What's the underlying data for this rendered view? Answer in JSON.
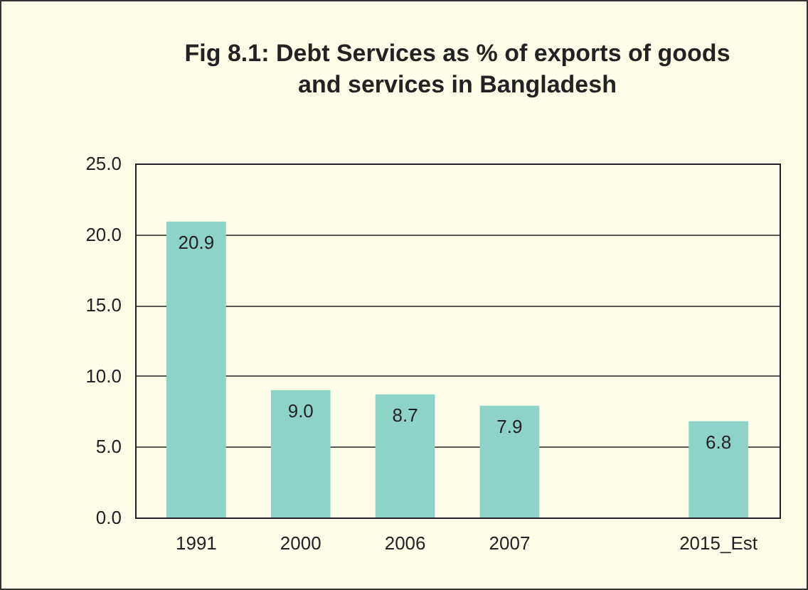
{
  "chart_data": {
    "type": "bar",
    "title": "Fig 8.1: Debt Services as % of exports of goods and services in Bangladesh",
    "categories": [
      "1991",
      "2000",
      "2006",
      "2007",
      null,
      "2015_Est"
    ],
    "values": [
      20.9,
      9.0,
      8.7,
      7.9,
      null,
      6.8
    ],
    "value_labels": [
      "20.9",
      "9.0",
      "8.7",
      "7.9",
      null,
      "6.8"
    ],
    "color": "#8dd3c7",
    "ylim": [
      0,
      25
    ],
    "yticks": [
      {
        "value": 0,
        "label": "0.0"
      },
      {
        "value": 5,
        "label": "5.0"
      },
      {
        "value": 10,
        "label": "10.0"
      },
      {
        "value": 15,
        "label": "15.0"
      },
      {
        "value": 20,
        "label": "20.0"
      },
      {
        "value": 25,
        "label": "25.0"
      }
    ],
    "grid": "y"
  }
}
